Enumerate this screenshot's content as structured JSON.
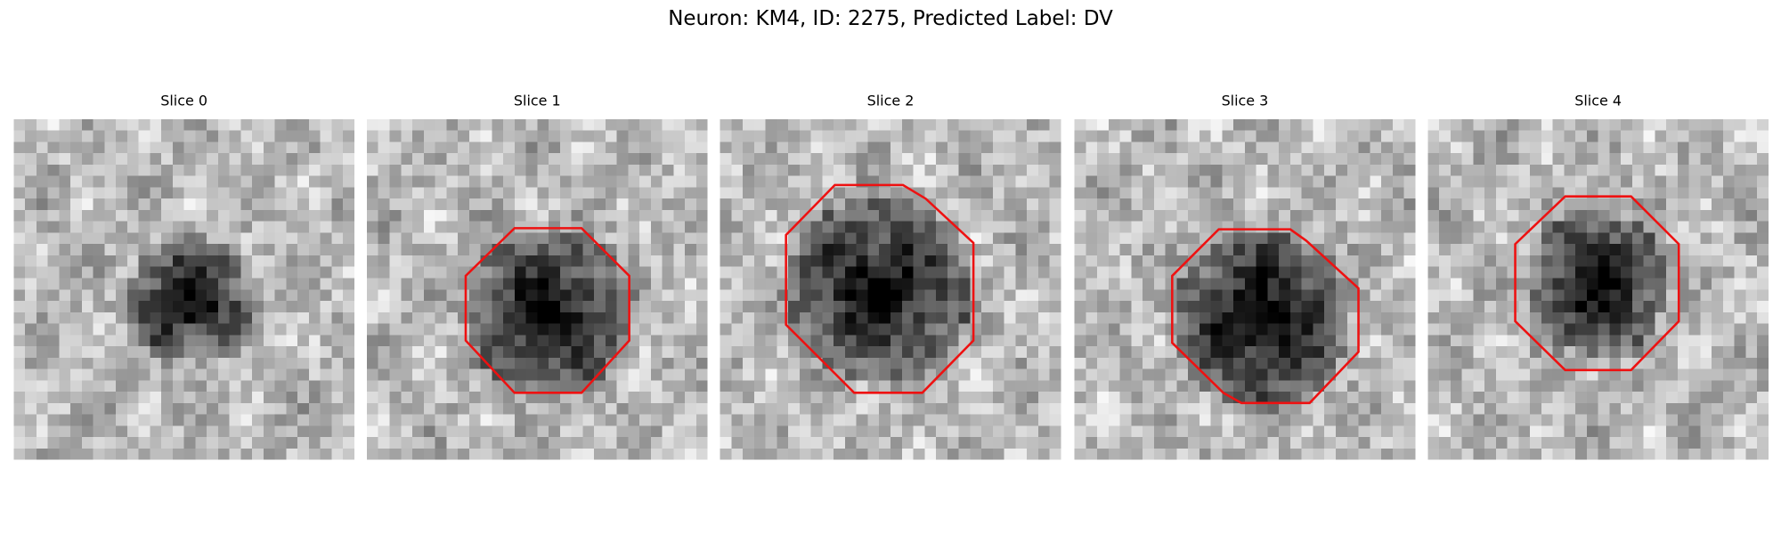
{
  "title": "Neuron: KM4, ID: 2275, Predicted Label: DV",
  "panels": [
    {
      "title": "Slice 0"
    },
    {
      "title": "Slice 1"
    },
    {
      "title": "Slice 2"
    },
    {
      "title": "Slice 3"
    },
    {
      "title": "Slice 4"
    }
  ]
}
